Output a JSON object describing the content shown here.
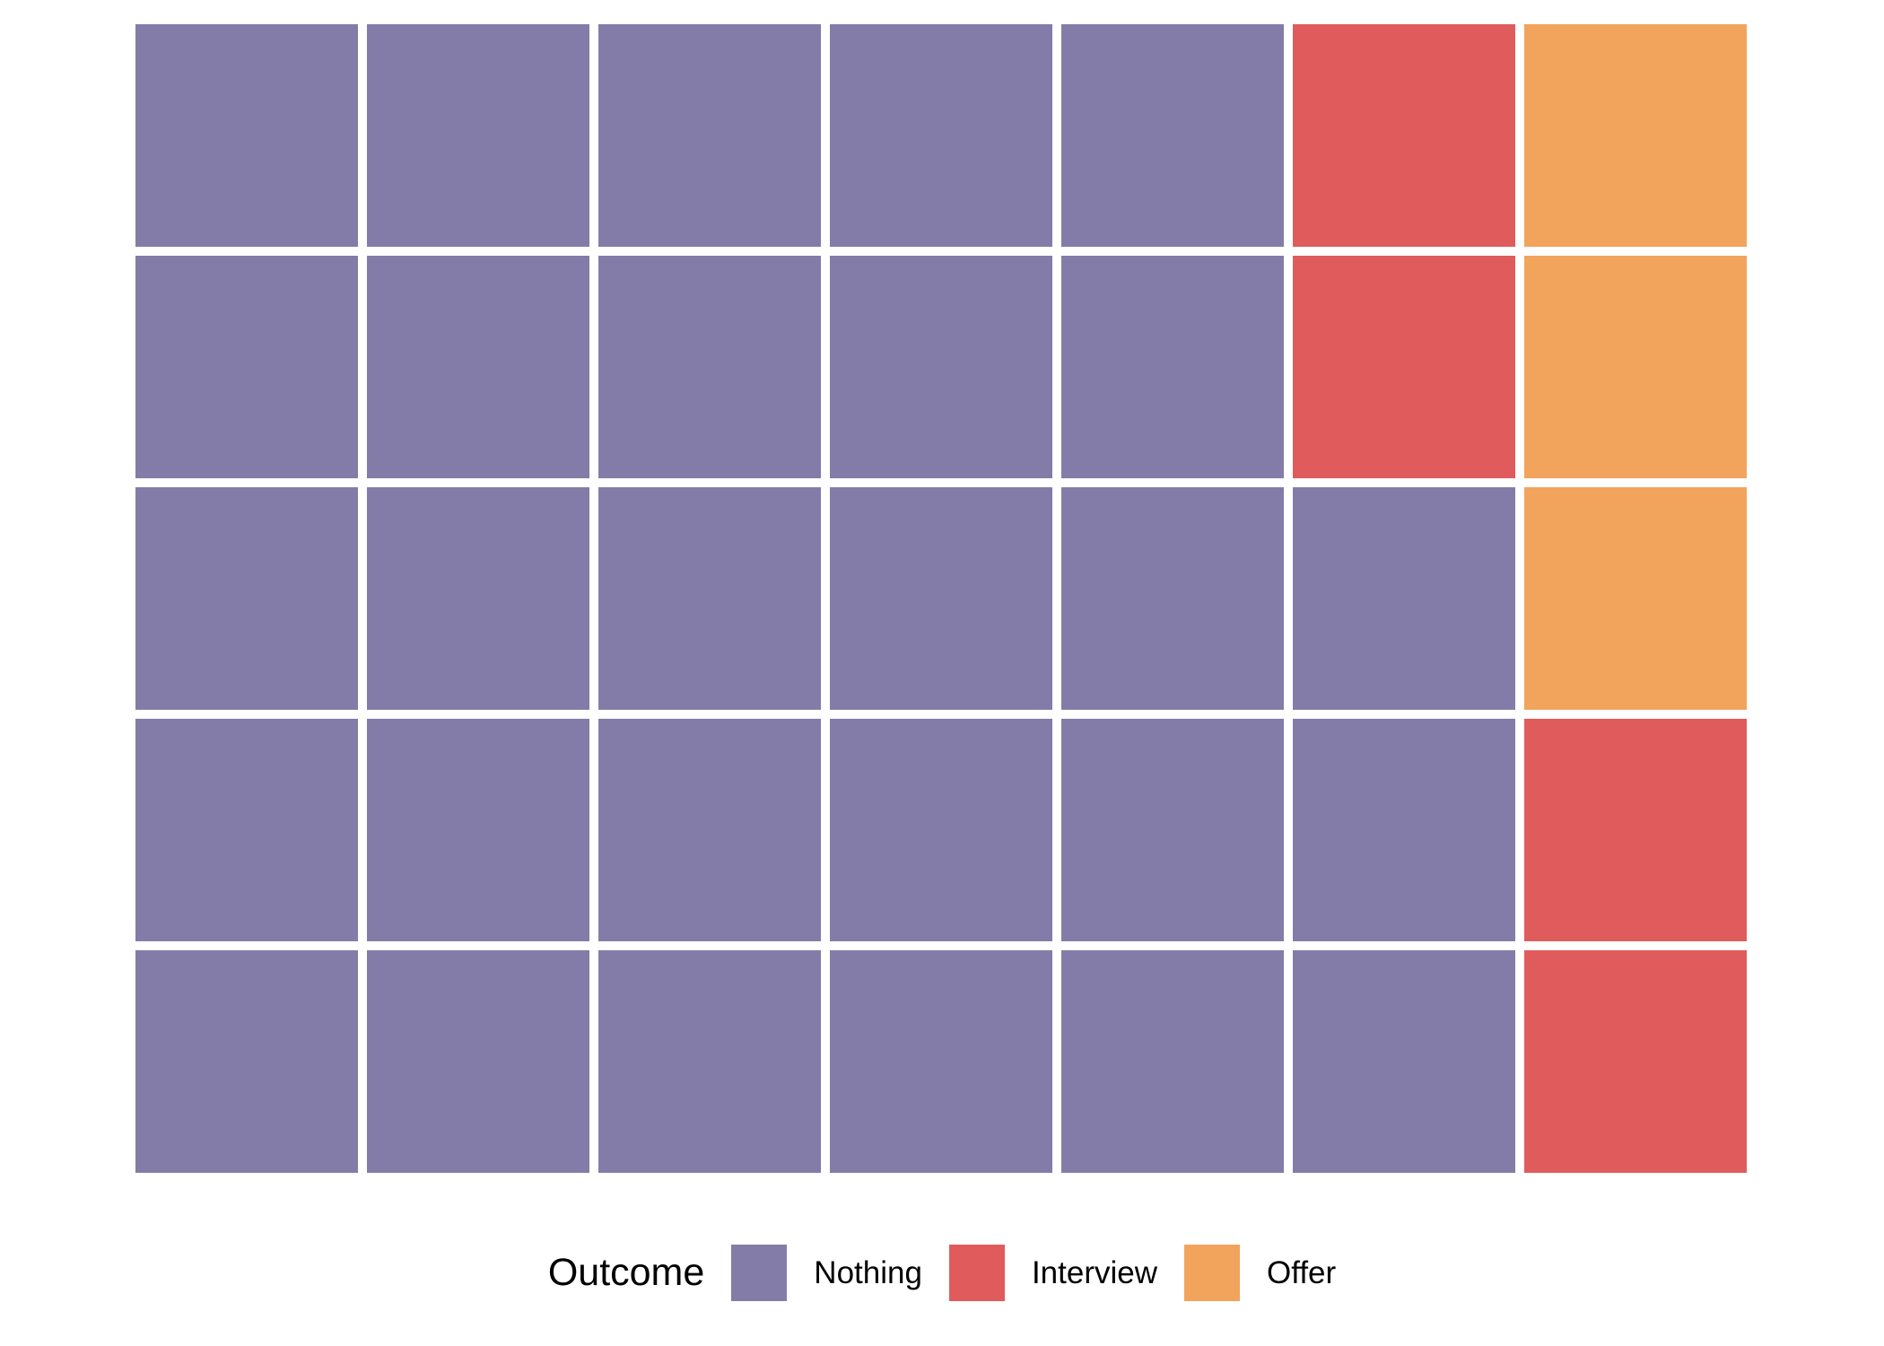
{
  "chart_data": {
    "type": "heatmap",
    "subtype": "waffle",
    "title": "",
    "legend_title": "Outcome",
    "legend_position": "bottom",
    "grid_rows": 5,
    "grid_cols": 7,
    "total_cells": 35,
    "categories": [
      "Nothing",
      "Interview",
      "Offer"
    ],
    "counts": [
      28,
      4,
      3
    ],
    "colors": {
      "Nothing": "#847CA8",
      "Interview": "#E05C5C",
      "Offer": "#F2A45C"
    },
    "gap_color": "#FFFFFF",
    "grid": [
      [
        "Nothing",
        "Nothing",
        "Nothing",
        "Nothing",
        "Nothing",
        "Interview",
        "Offer"
      ],
      [
        "Nothing",
        "Nothing",
        "Nothing",
        "Nothing",
        "Nothing",
        "Interview",
        "Offer"
      ],
      [
        "Nothing",
        "Nothing",
        "Nothing",
        "Nothing",
        "Nothing",
        "Nothing",
        "Offer"
      ],
      [
        "Nothing",
        "Nothing",
        "Nothing",
        "Nothing",
        "Nothing",
        "Nothing",
        "Interview"
      ],
      [
        "Nothing",
        "Nothing",
        "Nothing",
        "Nothing",
        "Nothing",
        "Nothing",
        "Interview"
      ]
    ]
  },
  "legend": {
    "title": "Outcome",
    "items": [
      {
        "label": "Nothing",
        "color": "#847CA8"
      },
      {
        "label": "Interview",
        "color": "#E05C5C"
      },
      {
        "label": "Offer",
        "color": "#F2A45C"
      }
    ]
  }
}
